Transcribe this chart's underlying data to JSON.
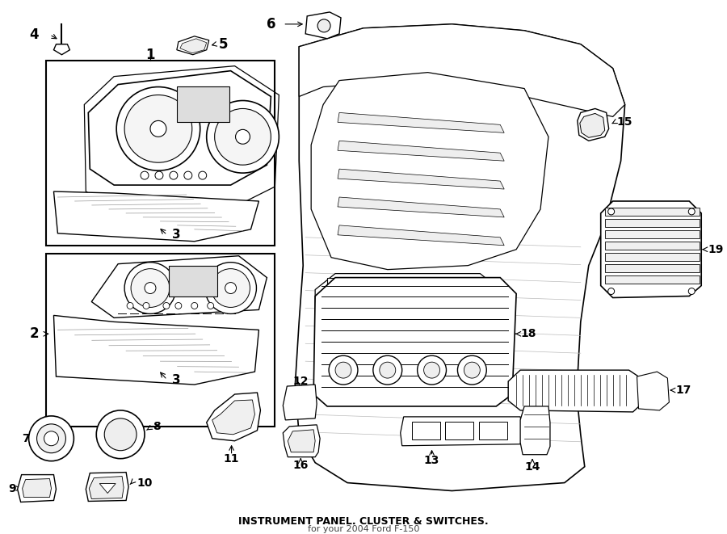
{
  "title": "INSTRUMENT PANEL. CLUSTER & SWITCHES.",
  "subtitle": "for your 2004 Ford F-150",
  "bg_color": "#ffffff",
  "lc": "#000000",
  "figsize": [
    9.0,
    6.61
  ],
  "dpi": 100,
  "xlim": [
    0,
    900
  ],
  "ylim": [
    0,
    661
  ]
}
